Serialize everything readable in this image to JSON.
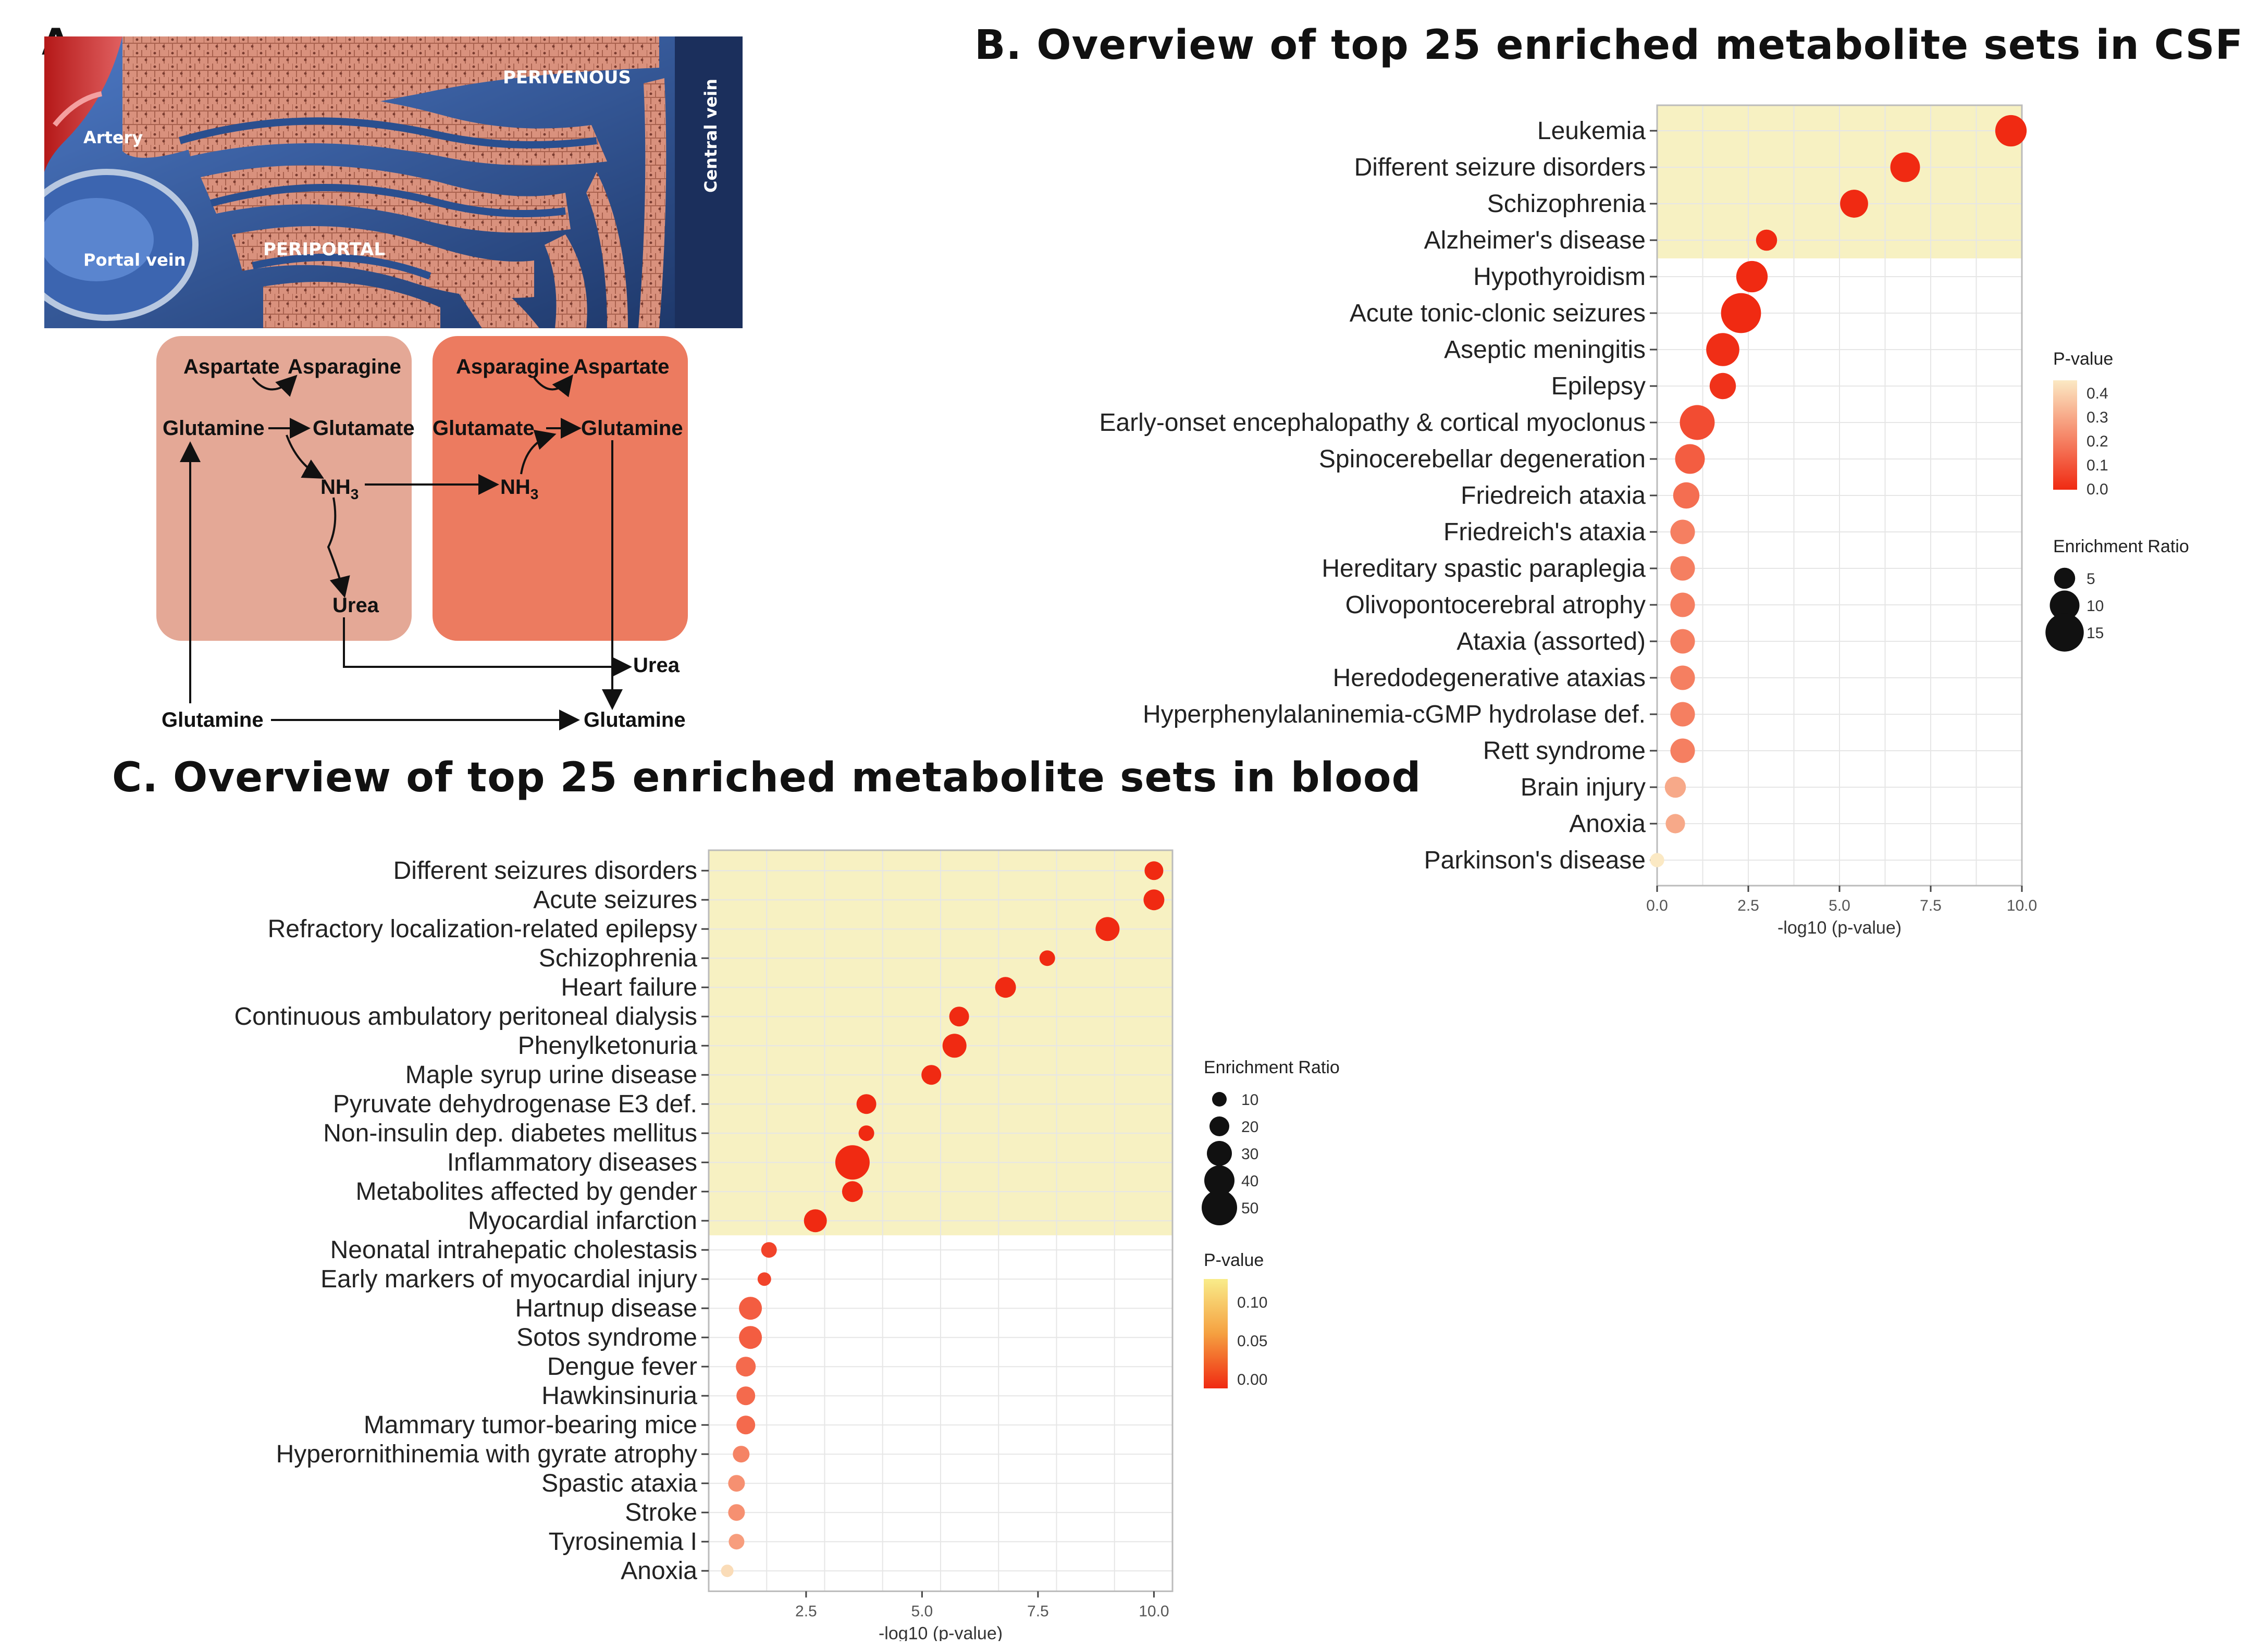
{
  "panel_a": {
    "label": "A.",
    "liver_labels": {
      "perivenous": "PERIVENOUS",
      "artery": "Artery",
      "central_vein": "Central vein",
      "portal_vein": "Portal vein",
      "periportal": "PERIPORTAL"
    },
    "pathway": {
      "left_top_a": "Aspartate",
      "left_top_b": "Asparagine",
      "left_mid_a": "Glutamine",
      "left_mid_b": "Glutamate",
      "right_top_a": "Asparagine",
      "right_top_b": "Aspartate",
      "right_mid_a": "Glutamate",
      "right_mid_b": "Glutamine",
      "nh3_left": "NH",
      "nh3_right": "NH",
      "nh3_sub": "3",
      "urea_inner": "Urea",
      "urea_outer": "Urea",
      "glutamine_bottom_left": "Glutamine",
      "glutamine_bottom_right": "Glutamine"
    }
  },
  "colors": {
    "highlight": "#f7f1c2",
    "p_high": "#fbe9c4",
    "p_low": "#f02a12",
    "liver_blue": "#2a4f8f",
    "liver_tissue": "#d9917d",
    "peri_box": "#e4a896",
    "peri_box_dark": "#ec7b60"
  },
  "chart_data": [
    {
      "type": "scatter",
      "title": "B. Overview of top 25 enriched metabolite sets in CSF",
      "xlabel": "-log10 (p-value)",
      "xlim": [
        0,
        10
      ],
      "xticks": [
        "0.0",
        "2.5",
        "5.0",
        "7.5",
        "10.0"
      ],
      "highlight_rows": 4,
      "categories": [
        "Leukemia",
        "Different seizure disorders",
        "Schizophrenia",
        "Alzheimer's disease",
        "Hypothyroidism",
        "Acute tonic-clonic seizures",
        "Aseptic meningitis",
        "Epilepsy",
        "Early-onset encephalopathy & cortical myoclonus",
        "Spinocerebellar degeneration",
        "Friedreich ataxia",
        "Friedreich's ataxia",
        "Hereditary spastic paraplegia",
        "Olivopontocerebral atrophy",
        "Ataxia (assorted)",
        "Heredodegenerative ataxias",
        "Hyperphenylalaninemia-cGMP hydrolase def.",
        "Rett syndrome",
        "Brain injury",
        "Anoxia",
        "Parkinson's disease"
      ],
      "x": [
        9.7,
        6.8,
        5.4,
        3.0,
        2.6,
        2.3,
        1.8,
        1.8,
        1.1,
        0.9,
        0.8,
        0.7,
        0.7,
        0.7,
        0.7,
        0.7,
        0.7,
        0.7,
        0.5,
        0.5,
        0.0
      ],
      "enrichment": [
        11,
        10,
        9,
        5,
        11,
        16,
        12,
        8,
        13,
        10,
        8,
        7,
        7,
        7,
        7,
        7,
        7,
        7,
        5,
        4,
        1
      ],
      "p_value": [
        0.0,
        0.0,
        0.0,
        0.0,
        0.0,
        0.0,
        0.01,
        0.02,
        0.08,
        0.12,
        0.16,
        0.2,
        0.2,
        0.2,
        0.2,
        0.2,
        0.2,
        0.2,
        0.3,
        0.3,
        0.45
      ],
      "legend_p": {
        "title": "P-value",
        "ticks": [
          "0.4",
          "0.3",
          "0.2",
          "0.1",
          "0.0"
        ]
      },
      "legend_size": {
        "title": "Enrichment Ratio",
        "ticks": [
          "5",
          "10",
          "15"
        ]
      }
    },
    {
      "type": "scatter",
      "title": "C. Overview of top 25 enriched metabolite sets in blood",
      "xlabel": "-log10 (p-value)",
      "xlim": [
        0.4,
        10.4
      ],
      "xticks": [
        "2.5",
        "5.0",
        "7.5",
        "10.0"
      ],
      "highlight_rows": 13,
      "categories": [
        "Different seizures disorders",
        "Acute seizures",
        "Refractory localization-related epilepsy",
        "Schizophrenia",
        "Heart failure",
        "Continuous ambulatory peritoneal dialysis",
        "Phenylketonuria",
        "Maple syrup urine disease",
        "Pyruvate dehydrogenase E3 def.",
        "Non-insulin dep. diabetes mellitus",
        "Inflammatory diseases",
        "Metabolites affected by gender",
        "Myocardial infarction",
        "Neonatal intrahepatic cholestasis",
        "Early markers of myocardial injury",
        "Hartnup disease",
        "Sotos syndrome",
        "Dengue fever",
        "Hawkinsinuria",
        "Mammary tumor-bearing mice",
        "Hyperornithinemia with gyrate atrophy",
        "Spastic ataxia",
        "Stroke",
        "Tyrosinemia I",
        "Anoxia"
      ],
      "x": [
        10.0,
        10.0,
        9.0,
        7.7,
        6.8,
        5.8,
        5.7,
        5.2,
        3.8,
        3.8,
        3.5,
        3.5,
        2.7,
        1.7,
        1.6,
        1.3,
        1.3,
        1.2,
        1.2,
        1.2,
        1.1,
        1.0,
        1.0,
        1.0,
        0.8
      ],
      "enrichment": [
        18,
        22,
        28,
        12,
        22,
        20,
        28,
        20,
        20,
        12,
        48,
        22,
        26,
        12,
        8,
        26,
        26,
        20,
        18,
        18,
        14,
        14,
        14,
        12,
        6
      ],
      "p_value": [
        0.0,
        0.0,
        0.0,
        0.0,
        0.0,
        0.0,
        0.0,
        0.0,
        0.0,
        0.0,
        0.0,
        0.0,
        0.0,
        0.02,
        0.02,
        0.04,
        0.04,
        0.05,
        0.05,
        0.05,
        0.07,
        0.08,
        0.08,
        0.09,
        0.14
      ],
      "legend_size": {
        "title": "Enrichment Ratio",
        "ticks": [
          "10",
          "20",
          "30",
          "40",
          "50"
        ]
      },
      "legend_p": {
        "title": "P-value",
        "ticks": [
          "0.10",
          "0.05",
          "0.00"
        ]
      }
    }
  ]
}
